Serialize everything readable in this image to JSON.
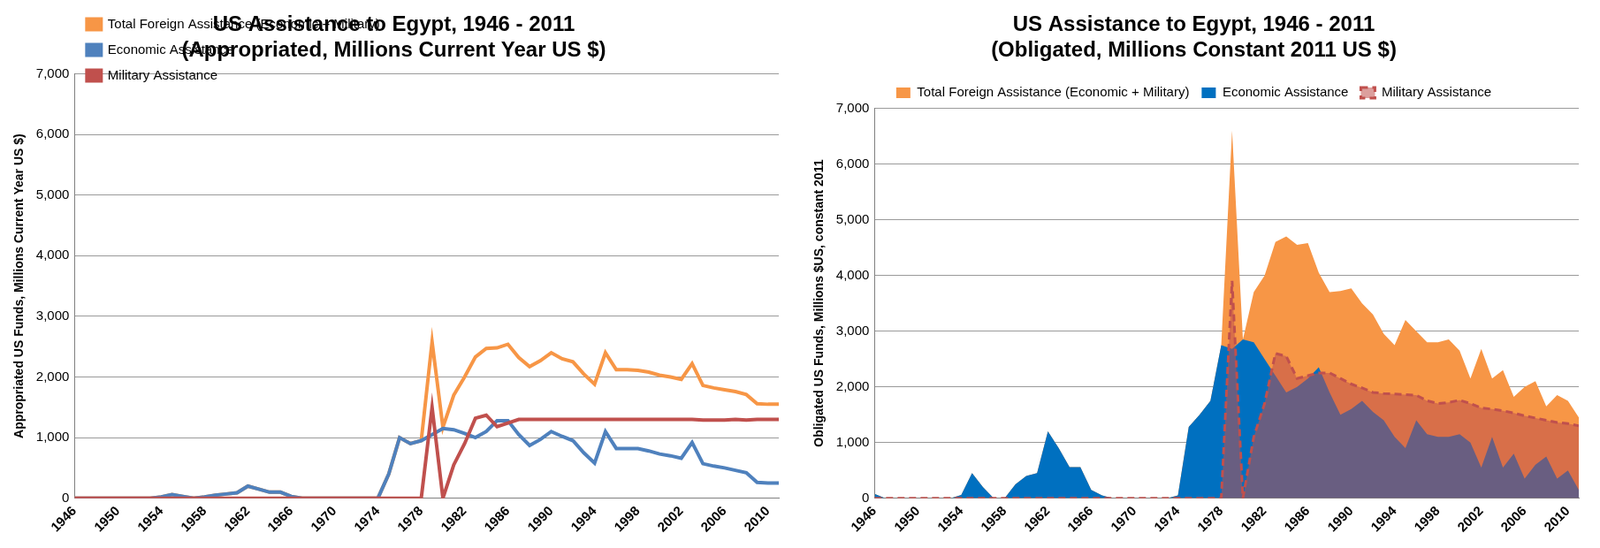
{
  "chart_data": [
    {
      "type": "line",
      "title": "US Assistance to Egypt, 1946 - 2011",
      "subtitle": "(Appropriated, Millions Current Year US $)",
      "ylabel": "Appropriated US Funds, Millions Current Year US $)",
      "x": [
        1946,
        1947,
        1948,
        1949,
        1950,
        1951,
        1952,
        1953,
        1954,
        1955,
        1956,
        1957,
        1958,
        1959,
        1960,
        1961,
        1962,
        1963,
        1964,
        1965,
        1966,
        1967,
        1968,
        1969,
        1970,
        1971,
        1972,
        1973,
        1974,
        1975,
        1976,
        1977,
        1978,
        1979,
        1980,
        1981,
        1982,
        1983,
        1984,
        1985,
        1986,
        1987,
        1988,
        1989,
        1990,
        1991,
        1992,
        1993,
        1994,
        1995,
        1996,
        1997,
        1998,
        1999,
        2000,
        2001,
        2002,
        2003,
        2004,
        2005,
        2006,
        2007,
        2008,
        2009,
        2010,
        2011
      ],
      "series": [
        {
          "name": "Total Foreign Assistance (Economic + Military)",
          "color": "#f79646",
          "values": [
            0,
            0,
            0,
            0,
            0,
            0,
            0,
            0,
            20,
            60,
            30,
            0,
            20,
            50,
            70,
            90,
            200,
            150,
            100,
            100,
            30,
            0,
            0,
            0,
            0,
            0,
            0,
            0,
            0,
            400,
            1000,
            900,
            950,
            2580,
            1170,
            1700,
            2000,
            2330,
            2470,
            2480,
            2540,
            2320,
            2170,
            2270,
            2400,
            2300,
            2250,
            2050,
            1880,
            2400,
            2120,
            2120,
            2110,
            2080,
            2030,
            2000,
            1960,
            2220,
            1860,
            1820,
            1790,
            1760,
            1710,
            1560,
            1550,
            1550
          ]
        },
        {
          "name": "Economic Assistance",
          "color": "#4f81bd",
          "values": [
            0,
            0,
            0,
            0,
            0,
            0,
            0,
            0,
            20,
            60,
            30,
            0,
            20,
            50,
            70,
            90,
            200,
            150,
            100,
            100,
            30,
            0,
            0,
            0,
            0,
            0,
            0,
            0,
            0,
            400,
            1000,
            900,
            950,
            1050,
            1150,
            1130,
            1070,
            1000,
            1100,
            1280,
            1280,
            1050,
            870,
            970,
            1100,
            1020,
            950,
            750,
            580,
            1100,
            820,
            820,
            820,
            780,
            730,
            700,
            660,
            920,
            570,
            530,
            500,
            460,
            420,
            260,
            250,
            250
          ]
        },
        {
          "name": "Military Assistance",
          "color": "#c0504d",
          "values": [
            0,
            0,
            0,
            0,
            0,
            0,
            0,
            0,
            0,
            0,
            0,
            0,
            0,
            0,
            0,
            0,
            0,
            0,
            0,
            0,
            0,
            0,
            0,
            0,
            0,
            0,
            0,
            0,
            0,
            0,
            0,
            0,
            0,
            1500,
            0,
            550,
            900,
            1320,
            1370,
            1180,
            1240,
            1300,
            1300,
            1300,
            1300,
            1300,
            1300,
            1300,
            1300,
            1300,
            1300,
            1300,
            1300,
            1300,
            1300,
            1300,
            1300,
            1300,
            1290,
            1290,
            1290,
            1300,
            1290,
            1300,
            1300,
            1300
          ]
        }
      ],
      "xlim": [
        1946,
        2011
      ],
      "xticks": [
        1946,
        1950,
        1954,
        1958,
        1962,
        1966,
        1970,
        1974,
        1978,
        1982,
        1986,
        1990,
        1994,
        1998,
        2002,
        2006,
        2010
      ],
      "ylim": [
        0,
        7000
      ],
      "yticks": [
        0,
        {
          "value": 1000,
          "label": "1,000"
        },
        {
          "value": 2000,
          "label": "2,000"
        },
        {
          "value": 3000,
          "label": "3,000"
        },
        {
          "value": 4000,
          "label": "4,000"
        },
        {
          "value": 5000,
          "label": "5,000"
        },
        {
          "value": 6000,
          "label": "6,000"
        },
        {
          "value": 7000,
          "label": "7,000"
        }
      ],
      "grid": "y",
      "legend": "upper left"
    },
    {
      "type": "area",
      "title": "US Assistance to Egypt, 1946 - 2011",
      "subtitle": "(Obligated, Millions Constant 2011 US $)",
      "ylabel": "Obligated US Funds, Millions $US, constant 2011",
      "x": [
        1946,
        1947,
        1948,
        1949,
        1950,
        1951,
        1952,
        1953,
        1954,
        1955,
        1956,
        1957,
        1958,
        1959,
        1960,
        1961,
        1962,
        1963,
        1964,
        1965,
        1966,
        1967,
        1968,
        1969,
        1970,
        1971,
        1972,
        1973,
        1974,
        1975,
        1976,
        1977,
        1978,
        1979,
        1980,
        1981,
        1982,
        1983,
        1984,
        1985,
        1986,
        1987,
        1988,
        1989,
        1990,
        1991,
        1992,
        1993,
        1994,
        1995,
        1996,
        1997,
        1998,
        1999,
        2000,
        2001,
        2002,
        2003,
        2004,
        2005,
        2006,
        2007,
        2008,
        2009,
        2010,
        2011
      ],
      "series": [
        {
          "name": "Total Foreign Assistance (Economic + Military)",
          "color": "#f79646",
          "values": [
            80,
            0,
            0,
            0,
            0,
            0,
            0,
            0,
            60,
            450,
            200,
            0,
            0,
            250,
            400,
            450,
            1200,
            900,
            560,
            560,
            150,
            50,
            0,
            0,
            0,
            0,
            0,
            0,
            50,
            1280,
            1500,
            1750,
            2750,
            6600,
            2850,
            3700,
            4000,
            4600,
            4700,
            4550,
            4580,
            4050,
            3700,
            3720,
            3770,
            3500,
            3300,
            2950,
            2750,
            3200,
            3000,
            2800,
            2800,
            2850,
            2650,
            2150,
            2680,
            2150,
            2300,
            1820,
            2000,
            2100,
            1650,
            1850,
            1750,
            1450
          ]
        },
        {
          "name": "Economic Assistance",
          "color": "#0070c0",
          "values": [
            80,
            0,
            0,
            0,
            0,
            0,
            0,
            0,
            60,
            450,
            200,
            0,
            0,
            250,
            400,
            450,
            1200,
            900,
            560,
            560,
            150,
            50,
            0,
            0,
            0,
            0,
            0,
            0,
            50,
            1280,
            1500,
            1750,
            2750,
            2680,
            2850,
            2800,
            2500,
            2200,
            1900,
            2000,
            2150,
            2350,
            1900,
            1500,
            1600,
            1750,
            1550,
            1400,
            1100,
            900,
            1400,
            1150,
            1100,
            1100,
            1150,
            1000,
            550,
            1100,
            550,
            800,
            350,
            600,
            750,
            350,
            500,
            150
          ]
        },
        {
          "name": "Military Assistance",
          "color": "#c0504d",
          "line_style": "dashed",
          "values": [
            0,
            0,
            0,
            0,
            0,
            0,
            0,
            0,
            0,
            0,
            0,
            0,
            0,
            0,
            0,
            0,
            0,
            0,
            0,
            0,
            0,
            0,
            0,
            0,
            0,
            0,
            0,
            0,
            0,
            0,
            0,
            0,
            0,
            3900,
            0,
            1100,
            1700,
            2600,
            2550,
            2150,
            2200,
            2250,
            2250,
            2150,
            2050,
            1980,
            1900,
            1880,
            1870,
            1860,
            1850,
            1750,
            1700,
            1720,
            1760,
            1700,
            1620,
            1600,
            1570,
            1530,
            1480,
            1440,
            1400,
            1360,
            1340,
            1300
          ]
        }
      ],
      "xlim": [
        1946,
        2011
      ],
      "xticks": [
        1946,
        1950,
        1954,
        1958,
        1962,
        1966,
        1970,
        1974,
        1978,
        1982,
        1986,
        1990,
        1994,
        1998,
        2002,
        2006,
        2010
      ],
      "ylim": [
        0,
        7000
      ],
      "yticks": [
        0,
        {
          "value": 1000,
          "label": "1,000"
        },
        {
          "value": 2000,
          "label": "2,000"
        },
        {
          "value": 3000,
          "label": "3,000"
        },
        {
          "value": 4000,
          "label": "4,000"
        },
        {
          "value": 5000,
          "label": "5,000"
        },
        {
          "value": 6000,
          "label": "6,000"
        },
        {
          "value": 7000,
          "label": "7,000"
        }
      ],
      "grid": "y",
      "legend": "top"
    }
  ]
}
